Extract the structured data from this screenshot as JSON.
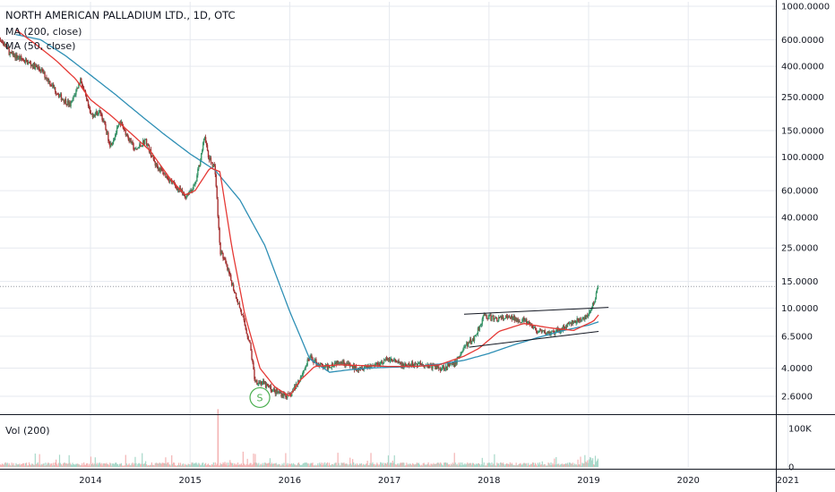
{
  "chart_data": {
    "type": "line",
    "title": "NORTH AMERICAN PALLADIUM LTD., 1D, OTC",
    "scale": "log",
    "ylim": [
      2.2,
      1100
    ],
    "x_ticks": [
      "2014",
      "2015",
      "2016",
      "2017",
      "2018",
      "2019",
      "2020",
      "2021"
    ],
    "y_ticks": [
      {
        "value": 1000,
        "label": "1000.0000"
      },
      {
        "value": 600,
        "label": "600.0000"
      },
      {
        "value": 400,
        "label": "400.0000"
      },
      {
        "value": 250,
        "label": "250.0000"
      },
      {
        "value": 150,
        "label": "150.0000"
      },
      {
        "value": 100,
        "label": "100.0000"
      },
      {
        "value": 60,
        "label": "60.0000"
      },
      {
        "value": 40,
        "label": "40.0000"
      },
      {
        "value": 25,
        "label": "25.0000"
      },
      {
        "value": 15,
        "label": "15.0000"
      },
      {
        "value": 10,
        "label": "10.0000"
      },
      {
        "value": 6.5,
        "label": "6.5000"
      },
      {
        "value": 4,
        "label": "4.0000"
      },
      {
        "value": 2.6,
        "label": "2.6000"
      }
    ],
    "last_price": 13.9,
    "series": [
      {
        "name": "MA (200, close)",
        "color": "#2e8fb5",
        "x": [
          2013.25,
          2013.5,
          2013.75,
          2014.0,
          2014.25,
          2014.5,
          2014.75,
          2015.0,
          2015.25,
          2015.5,
          2015.75,
          2016.0,
          2016.2,
          2016.4,
          2016.6,
          2016.8,
          2017.0,
          2017.25,
          2017.5,
          2017.75,
          2018.0,
          2018.25,
          2018.5,
          2018.75,
          2019.0,
          2019.1
        ],
        "values": [
          650,
          600,
          470,
          350,
          260,
          190,
          140,
          105,
          82,
          52,
          26,
          9.5,
          4.6,
          3.75,
          3.9,
          4.0,
          4.05,
          4.1,
          4.25,
          4.5,
          5.0,
          5.7,
          6.4,
          7.1,
          7.7,
          8.1
        ]
      },
      {
        "name": "MA (50, close)",
        "color": "#e53935",
        "x": [
          2013.25,
          2013.45,
          2013.65,
          2013.85,
          2014.0,
          2014.2,
          2014.4,
          2014.6,
          2014.8,
          2014.95,
          2015.05,
          2015.2,
          2015.3,
          2015.42,
          2015.55,
          2015.7,
          2015.85,
          2016.0,
          2016.1,
          2016.25,
          2016.5,
          2016.75,
          2017.0,
          2017.25,
          2017.5,
          2017.75,
          2017.9,
          2018.1,
          2018.35,
          2018.6,
          2018.85,
          2019.05,
          2019.1
        ],
        "values": [
          700,
          560,
          440,
          330,
          240,
          190,
          145,
          110,
          72,
          56,
          60,
          85,
          80,
          25,
          9,
          4.0,
          3.0,
          2.6,
          3.3,
          4.1,
          4.2,
          4.15,
          4.1,
          4.1,
          4.2,
          4.8,
          5.4,
          7.0,
          7.9,
          7.4,
          7.1,
          8.2,
          9.0
        ]
      },
      {
        "name": "price",
        "color": "#333333",
        "x": [
          2013.0,
          2013.2,
          2013.3,
          2013.5,
          2013.7,
          2013.8,
          2013.9,
          2014.0,
          2014.1,
          2014.2,
          2014.3,
          2014.45,
          2014.55,
          2014.65,
          2014.8,
          2014.95,
          2015.05,
          2015.15,
          2015.18,
          2015.25,
          2015.3,
          2015.33,
          2015.4,
          2015.5,
          2015.6,
          2015.65,
          2015.72,
          2015.85,
          2016.0,
          2016.1,
          2016.2,
          2016.35,
          2016.5,
          2016.65,
          2016.85,
          2017.0,
          2017.15,
          2017.3,
          2017.5,
          2017.65,
          2017.75,
          2017.85,
          2017.95,
          2018.05,
          2018.2,
          2018.35,
          2018.5,
          2018.65,
          2018.8,
          2018.95,
          2019.05,
          2019.1
        ],
        "values": [
          750,
          480,
          450,
          380,
          250,
          220,
          330,
          190,
          200,
          120,
          170,
          110,
          130,
          90,
          70,
          55,
          65,
          140,
          100,
          85,
          24,
          22,
          16,
          10,
          5.8,
          3.3,
          3.2,
          2.8,
          2.6,
          3.4,
          4.7,
          4.0,
          4.5,
          4.0,
          4.2,
          4.6,
          4.1,
          4.3,
          4.0,
          4.2,
          5.5,
          6.3,
          8.9,
          8.5,
          8.6,
          8.3,
          6.9,
          6.8,
          7.8,
          8.5,
          10.5,
          13.9
        ]
      }
    ],
    "trendlines": [
      {
        "x": [
          2017.75,
          2019.2
        ],
        "values": [
          9.1,
          10.1
        ]
      },
      {
        "x": [
          2017.8,
          2019.1
        ],
        "values": [
          5.5,
          7.0
        ]
      }
    ],
    "marker": {
      "label": "S",
      "x": 2015.7,
      "value": 2.55
    },
    "volume": {
      "label": "Vol (200)",
      "y_ticks": [
        {
          "value": 100000,
          "label": "100K"
        },
        {
          "value": 0,
          "label": "0"
        }
      ],
      "spike_x": 2015.28,
      "spike_value": 150000
    }
  },
  "legend": {
    "title": "NORTH AMERICAN PALLADIUM LTD., 1D, OTC",
    "ma200": "MA (200, close)",
    "ma50": "MA (50, close)"
  },
  "colors": {
    "ma200": "#2e8fb5",
    "ma50": "#e53935",
    "up": "#26a69a",
    "down": "#ef5350",
    "grid": "#e6e9ef"
  }
}
